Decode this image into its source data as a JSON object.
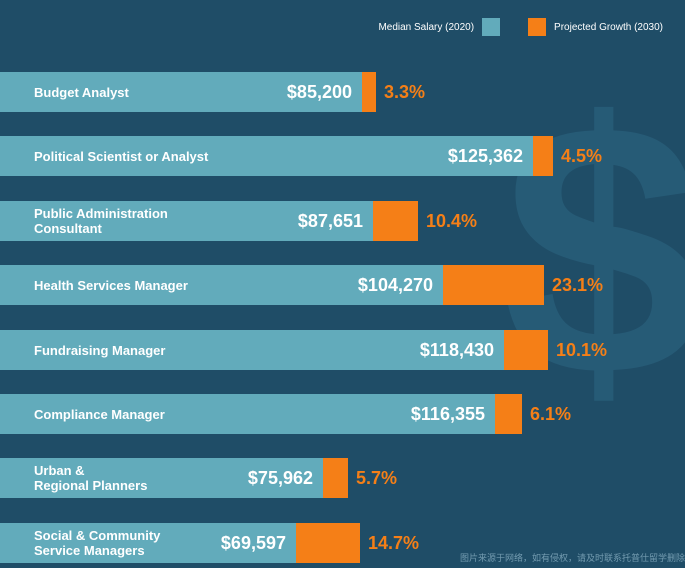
{
  "legend": {
    "salary_label": "Median Salary (2020)",
    "growth_label": "Projected Growth (2030)"
  },
  "colors": {
    "background": "#1f4d67",
    "salary": "#62abbb",
    "growth": "#f57f17",
    "growth_text": "#f57f17",
    "dollar": "#2d6784"
  },
  "chart_data": {
    "type": "bar",
    "categories": [
      "Budget Analyst",
      "Political Scientist or Analyst",
      "Public Administration\nConsultant",
      "Health Services Manager",
      "Fundraising Manager",
      "Compliance Manager",
      "Urban &\nRegional Planners",
      "Social & Community\nService Managers"
    ],
    "series": [
      {
        "name": "Median Salary (2020)",
        "values": [
          85200,
          125362,
          87651,
          104270,
          118430,
          116355,
          75962,
          69597
        ],
        "display": [
          "$85,200",
          "$125,362",
          "$87,651",
          "$104,270",
          "$118,430",
          "$116,355",
          "$75,962",
          "$69,597"
        ]
      },
      {
        "name": "Projected Growth (2030)",
        "values": [
          3.3,
          4.5,
          10.4,
          23.1,
          10.1,
          6.1,
          5.7,
          14.7
        ],
        "display": [
          "3.3%",
          "4.5%",
          "10.4%",
          "23.1%",
          "10.1%",
          "6.1%",
          "5.7%",
          "14.7%"
        ]
      }
    ],
    "orientation": "horizontal",
    "stacked": true,
    "legend_position": "top-right"
  },
  "decor": {
    "dollar_sign": "$"
  },
  "watermark": "图片来源于网络，如有侵权，请及时联系托普仕留学删除"
}
